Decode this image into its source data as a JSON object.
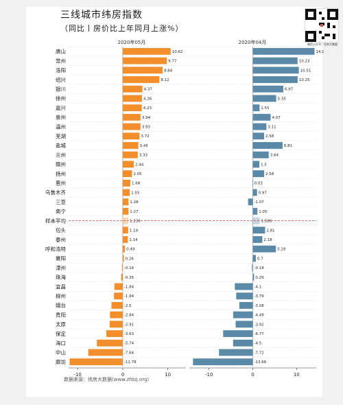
{
  "title": "三线城市纬房指数",
  "subtitle": "（同比丨房价比上年同月上涨%）",
  "source": "数据来源：纬房大数据(www.zfdzj.org)",
  "qr_caption": "微信公众号：住房大数据",
  "colors": {
    "may_bar": "#f28e2b",
    "apr_bar": "#5a8aa8",
    "average_line": "#d9534f"
  },
  "chart_data": {
    "type": "bar",
    "orientation": "horizontal",
    "categories": [
      "唐山",
      "常州",
      "洛阳",
      "绍兴",
      "银川",
      "徐州",
      "嘉兴",
      "泉州",
      "温州",
      "芜湖",
      "盐城",
      "兰州",
      "赣州",
      "扬州",
      "惠州",
      "乌鲁木齐",
      "三亚",
      "南宁",
      "样本平均",
      "包头",
      "泰州",
      "呼和浩特",
      "襄阳",
      "漳州",
      "珠海",
      "宜昌",
      "柳州",
      "烟台",
      "贵阳",
      "太原",
      "保定",
      "海口",
      "中山",
      "廊坊"
    ],
    "series": [
      {
        "name": "2020年05月",
        "values": [
          10.62,
          9.77,
          8.84,
          8.12,
          4.37,
          4.26,
          4.23,
          3.94,
          3.93,
          3.72,
          3.45,
          3.33,
          2.44,
          2.05,
          1.68,
          1.55,
          1.28,
          1.27,
          1.236,
          1.19,
          1.14,
          0.49,
          0.26,
          -0.16,
          -0.35,
          -1.84,
          -1.94,
          -2.5,
          -2.84,
          -2.91,
          -3.63,
          -5.74,
          -7.64,
          -11.78
        ],
        "value_labels": [
          "10.62",
          "9.77",
          "8.84",
          "8.12",
          "4.37",
          "4.26",
          "4.23",
          "3.94",
          "3.93",
          "3.72",
          "3.45",
          "3.33",
          "2.44",
          "2.05",
          "1.68",
          "1.55",
          "1.28",
          "1.27",
          "1.236",
          "1.19",
          "1.14",
          "0.49",
          "0.26",
          "-0.16",
          "-0.35",
          "-1.84",
          "-1.94",
          "-2.5",
          "-2.84",
          "-2.91",
          "-3.63",
          "-5.74",
          "-7.64",
          "-11.78"
        ],
        "xlim": [
          -12,
          14
        ],
        "ticks": [
          -10,
          0,
          10
        ]
      },
      {
        "name": "2020年04月",
        "values": [
          14.1,
          10.23,
          10.51,
          10.25,
          6.97,
          5.35,
          1.55,
          4.07,
          3.11,
          2.58,
          6.81,
          3.64,
          1.5,
          2.58,
          0.03,
          0.97,
          -1.07,
          1.05,
          1.586,
          2.81,
          2.18,
          5.29,
          0.7,
          -0.18,
          0.29,
          -4.1,
          -3.79,
          -3.08,
          -4.49,
          -3.92,
          -6.77,
          -4.5,
          -7.72,
          -13.66
        ],
        "value_labels": [
          "14.1",
          "10.23",
          "10.51",
          "10.25",
          "6.97",
          "5.35",
          "1.55",
          "4.07",
          "3.11",
          "2.58",
          "6.81",
          "3.64",
          "1.5",
          "2.58",
          "0.03",
          "0.97",
          "-1.07",
          "1.05",
          "1.586",
          "2.81",
          "2.18",
          "5.29",
          "0.7",
          "-0.18",
          "0.29",
          "-4.1",
          "-3.79",
          "-3.08",
          "-4.49",
          "-3.92",
          "-6.77",
          "-4.5",
          "-7.72",
          "-13.66"
        ],
        "xlim": [
          -14.5,
          14.5
        ],
        "ticks": [
          -10,
          0,
          10
        ]
      }
    ],
    "average_category": "样本平均",
    "grid": "horizontal dotted row separators"
  }
}
